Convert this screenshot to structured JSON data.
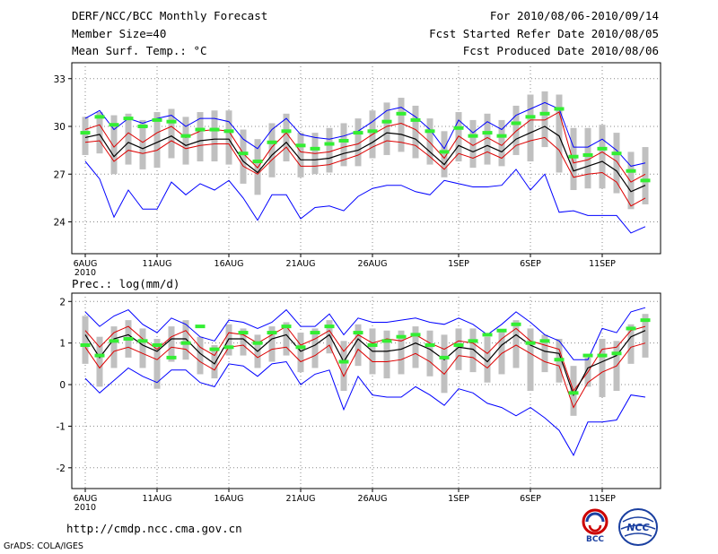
{
  "header": {
    "title": "DERF/NCC/BCC Monthly Forecast",
    "member_size": "Member Size=40",
    "variable": "Mean Surf. Temp.: °C",
    "forecast_for": "For 2010/08/06-2010/09/14",
    "fcst_started": "Fcst Started Refer Date 2010/08/05",
    "fcst_produced": "Fcst Produced Date 2010/08/06"
  },
  "footer": {
    "url": "http://cmdp.ncc.cma.gov.cn",
    "credit": "GrADS: COLA/IGES",
    "logo_bcc": "BCC",
    "logo_ncc": "NCC"
  },
  "colors": {
    "max_min": "#0000ff",
    "mean": "#000000",
    "std_band": "#dd0000",
    "spread_box": "#c0c0c0",
    "observed": "#33ee33",
    "grid": "#888888"
  },
  "chart_data": [
    {
      "type": "line",
      "title": "Mean Surf. Temp.: °C",
      "x_tick_labels": [
        "6AUG",
        "11AUG",
        "16AUG",
        "21AUG",
        "26AUG",
        "1SEP",
        "6SEP",
        "11SEP"
      ],
      "x_tick_day_index": [
        0,
        5,
        10,
        15,
        20,
        26,
        31,
        36
      ],
      "year_label": "2010",
      "y_ticks": [
        24,
        27,
        30,
        33
      ],
      "ylim": [
        22,
        34
      ],
      "n_days": 40,
      "series": [
        {
          "name": "max",
          "values": [
            30.5,
            31.0,
            29.8,
            30.5,
            30.2,
            30.5,
            30.7,
            30.0,
            30.5,
            30.5,
            30.3,
            29.2,
            28.6,
            29.8,
            30.5,
            29.5,
            29.3,
            29.2,
            29.4,
            29.7,
            30.3,
            31.0,
            31.2,
            30.6,
            29.8,
            28.6,
            30.4,
            29.6,
            30.3,
            29.8,
            30.7,
            31.1,
            31.5,
            31.1,
            28.7,
            28.7,
            29.2,
            28.5,
            27.5,
            27.7
          ]
        },
        {
          "name": "upper",
          "values": [
            29.8,
            30.1,
            28.7,
            29.6,
            29.0,
            29.6,
            30.0,
            29.3,
            29.7,
            29.8,
            29.7,
            28.3,
            27.4,
            28.7,
            29.6,
            28.4,
            28.3,
            28.4,
            28.7,
            28.9,
            29.5,
            30.0,
            30.2,
            29.8,
            29.0,
            28.0,
            29.4,
            28.8,
            29.3,
            28.8,
            29.7,
            30.4,
            30.4,
            30.9,
            27.7,
            27.9,
            28.4,
            27.8,
            26.5,
            27.0
          ]
        },
        {
          "name": "mean",
          "values": [
            29.3,
            29.5,
            28.1,
            29.0,
            28.6,
            29.0,
            29.4,
            28.8,
            29.1,
            29.2,
            29.2,
            27.8,
            27.1,
            28.2,
            29.0,
            27.9,
            27.9,
            28.0,
            28.3,
            28.5,
            29.0,
            29.6,
            29.5,
            29.2,
            28.4,
            27.6,
            28.8,
            28.4,
            28.8,
            28.4,
            29.2,
            29.6,
            30.0,
            29.4,
            27.2,
            27.5,
            27.8,
            27.2,
            25.9,
            26.3
          ]
        },
        {
          "name": "lower",
          "values": [
            29.0,
            29.1,
            27.8,
            28.5,
            28.3,
            28.5,
            29.1,
            28.6,
            28.8,
            28.9,
            28.9,
            27.5,
            27.0,
            27.9,
            28.7,
            27.5,
            27.5,
            27.6,
            27.9,
            28.2,
            28.7,
            29.1,
            29.0,
            28.8,
            28.1,
            27.3,
            28.3,
            28.0,
            28.4,
            28.0,
            28.8,
            29.1,
            29.3,
            28.5,
            26.8,
            27.0,
            27.1,
            26.5,
            25.0,
            25.5
          ]
        },
        {
          "name": "min",
          "values": [
            27.8,
            26.7,
            24.3,
            26.0,
            24.8,
            24.8,
            26.5,
            25.7,
            26.4,
            26.0,
            26.6,
            25.5,
            24.1,
            25.7,
            25.7,
            24.2,
            24.9,
            25.0,
            24.7,
            25.6,
            26.1,
            26.3,
            26.3,
            25.9,
            25.7,
            26.6,
            26.4,
            26.2,
            26.2,
            26.3,
            27.3,
            26.0,
            27.0,
            24.6,
            24.7,
            24.4,
            24.4,
            24.4,
            23.3,
            23.7
          ]
        },
        {
          "name": "observed",
          "values": [
            29.6,
            30.6,
            30.1,
            30.5,
            30.0,
            30.4,
            30.3,
            29.4,
            29.8,
            29.8,
            29.7,
            28.3,
            27.8,
            29.0,
            29.7,
            28.8,
            28.6,
            28.9,
            29.1,
            29.6,
            29.7,
            30.3,
            30.8,
            30.4,
            29.7,
            28.4,
            29.9,
            29.4,
            29.6,
            29.4,
            30.2,
            30.6,
            30.8,
            31.1,
            28.1,
            28.2,
            28.6,
            28.3,
            27.2,
            26.6
          ]
        },
        {
          "name": "box_high",
          "values": [
            30.6,
            30.9,
            30.7,
            30.8,
            30.4,
            30.9,
            31.1,
            30.6,
            30.9,
            31.0,
            31.0,
            29.8,
            29.2,
            30.2,
            30.8,
            29.6,
            29.6,
            29.9,
            30.2,
            30.5,
            31.0,
            31.5,
            31.8,
            31.3,
            30.5,
            29.7,
            30.9,
            30.4,
            30.8,
            30.4,
            31.3,
            32.0,
            32.2,
            32.0,
            29.9,
            29.9,
            30.1,
            29.6,
            28.4,
            28.7
          ]
        },
        {
          "name": "box_low",
          "values": [
            28.2,
            28.3,
            27.0,
            27.6,
            27.3,
            27.4,
            28.0,
            27.6,
            27.8,
            27.8,
            27.6,
            26.4,
            25.7,
            26.8,
            27.8,
            26.8,
            27.0,
            27.1,
            27.5,
            27.5,
            28.0,
            28.2,
            28.4,
            28.0,
            27.6,
            26.8,
            27.8,
            27.4,
            27.6,
            27.5,
            28.2,
            27.8,
            28.7,
            27.1,
            26.0,
            26.1,
            26.1,
            25.8,
            24.8,
            25.1
          ]
        }
      ]
    },
    {
      "type": "line",
      "title": "Prec.: log(mm/d)",
      "x_tick_labels": [
        "6AUG",
        "11AUG",
        "16AUG",
        "21AUG",
        "26AUG",
        "1SEP",
        "6SEP",
        "11SEP"
      ],
      "x_tick_day_index": [
        0,
        5,
        10,
        15,
        20,
        26,
        31,
        36
      ],
      "year_label": "2010",
      "y_ticks": [
        -2,
        -1,
        0,
        1,
        2
      ],
      "ylim": [
        -2.5,
        2.2
      ],
      "n_days": 40,
      "series": [
        {
          "name": "max",
          "values": [
            1.75,
            1.4,
            1.65,
            1.8,
            1.45,
            1.25,
            1.6,
            1.45,
            1.15,
            1.05,
            1.55,
            1.5,
            1.35,
            1.5,
            1.8,
            1.4,
            1.4,
            1.7,
            1.2,
            1.6,
            1.5,
            1.5,
            1.55,
            1.6,
            1.5,
            1.45,
            1.6,
            1.45,
            1.2,
            1.45,
            1.75,
            1.5,
            1.2,
            1.05,
            0.6,
            0.6,
            1.35,
            1.25,
            1.75,
            1.85
          ]
        },
        {
          "name": "upper",
          "values": [
            1.3,
            0.9,
            1.25,
            1.4,
            1.1,
            0.85,
            1.15,
            1.3,
            0.9,
            0.7,
            1.25,
            1.2,
            1.0,
            1.2,
            1.4,
            0.95,
            1.1,
            1.3,
            0.8,
            1.2,
            1.0,
            1.1,
            1.05,
            1.2,
            1.0,
            0.85,
            1.05,
            1.0,
            0.75,
            1.1,
            1.35,
            1.05,
            0.95,
            0.85,
            -0.15,
            0.3,
            0.85,
            0.9,
            1.3,
            1.4
          ]
        },
        {
          "name": "mean",
          "values": [
            1.2,
            0.65,
            1.1,
            1.2,
            0.95,
            0.8,
            1.1,
            1.1,
            0.75,
            0.5,
            1.1,
            1.1,
            0.8,
            1.1,
            1.2,
            0.8,
            0.95,
            1.2,
            0.55,
            1.1,
            0.8,
            0.8,
            0.85,
            1.0,
            0.85,
            0.6,
            0.9,
            0.85,
            0.55,
            0.95,
            1.2,
            0.95,
            0.8,
            0.75,
            -0.25,
            0.4,
            0.55,
            0.7,
            1.15,
            1.3
          ]
        },
        {
          "name": "lower",
          "values": [
            0.9,
            0.4,
            0.8,
            0.9,
            0.75,
            0.6,
            0.9,
            0.85,
            0.55,
            0.35,
            0.9,
            0.95,
            0.65,
            0.85,
            0.9,
            0.55,
            0.7,
            0.95,
            0.2,
            0.85,
            0.55,
            0.55,
            0.6,
            0.75,
            0.55,
            0.25,
            0.7,
            0.65,
            0.4,
            0.75,
            0.95,
            0.75,
            0.55,
            0.45,
            -0.55,
            0.05,
            0.3,
            0.45,
            0.9,
            1.0
          ]
        },
        {
          "name": "min",
          "values": [
            0.15,
            -0.2,
            0.1,
            0.4,
            0.2,
            0.05,
            0.35,
            0.35,
            0.05,
            -0.05,
            0.5,
            0.45,
            0.2,
            0.5,
            0.55,
            0.0,
            0.25,
            0.35,
            -0.6,
            0.2,
            -0.25,
            -0.3,
            -0.3,
            -0.05,
            -0.25,
            -0.5,
            -0.1,
            -0.2,
            -0.45,
            -0.55,
            -0.75,
            -0.55,
            -0.8,
            -1.1,
            -1.7,
            -0.9,
            -0.9,
            -0.85,
            -0.25,
            -0.3
          ]
        },
        {
          "name": "observed",
          "values": [
            0.95,
            0.7,
            1.05,
            1.1,
            1.05,
            0.95,
            0.65,
            1.0,
            1.4,
            0.85,
            0.9,
            1.25,
            1.0,
            1.25,
            1.4,
            0.9,
            1.25,
            1.4,
            0.55,
            1.25,
            0.95,
            1.05,
            1.15,
            1.2,
            0.95,
            0.65,
            0.95,
            1.05,
            1.2,
            1.3,
            1.45,
            1.0,
            1.05,
            0.6,
            -0.2,
            0.7,
            0.7,
            0.75,
            1.35,
            1.55
          ]
        },
        {
          "name": "box_high",
          "values": [
            1.65,
            1.15,
            1.4,
            1.55,
            1.35,
            1.1,
            1.4,
            1.55,
            1.15,
            0.95,
            1.45,
            1.35,
            1.2,
            1.4,
            1.5,
            1.25,
            1.35,
            1.55,
            1.05,
            1.45,
            1.35,
            1.3,
            1.3,
            1.4,
            1.3,
            1.2,
            1.35,
            1.35,
            1.15,
            1.3,
            1.55,
            1.35,
            1.2,
            1.1,
            0.45,
            0.65,
            1.1,
            1.05,
            1.45,
            1.7
          ]
        },
        {
          "name": "box_low",
          "values": [
            0.5,
            -0.05,
            0.4,
            0.65,
            0.4,
            -0.1,
            0.55,
            0.6,
            0.25,
            0.15,
            0.7,
            0.7,
            0.4,
            0.55,
            0.7,
            0.3,
            0.4,
            0.75,
            -0.15,
            0.45,
            0.25,
            0.15,
            0.25,
            0.4,
            0.2,
            -0.2,
            0.35,
            0.3,
            0.05,
            0.25,
            0.4,
            -0.15,
            0.3,
            0.05,
            -0.75,
            -0.05,
            -0.3,
            -0.15,
            0.5,
            0.65
          ]
        }
      ]
    }
  ]
}
